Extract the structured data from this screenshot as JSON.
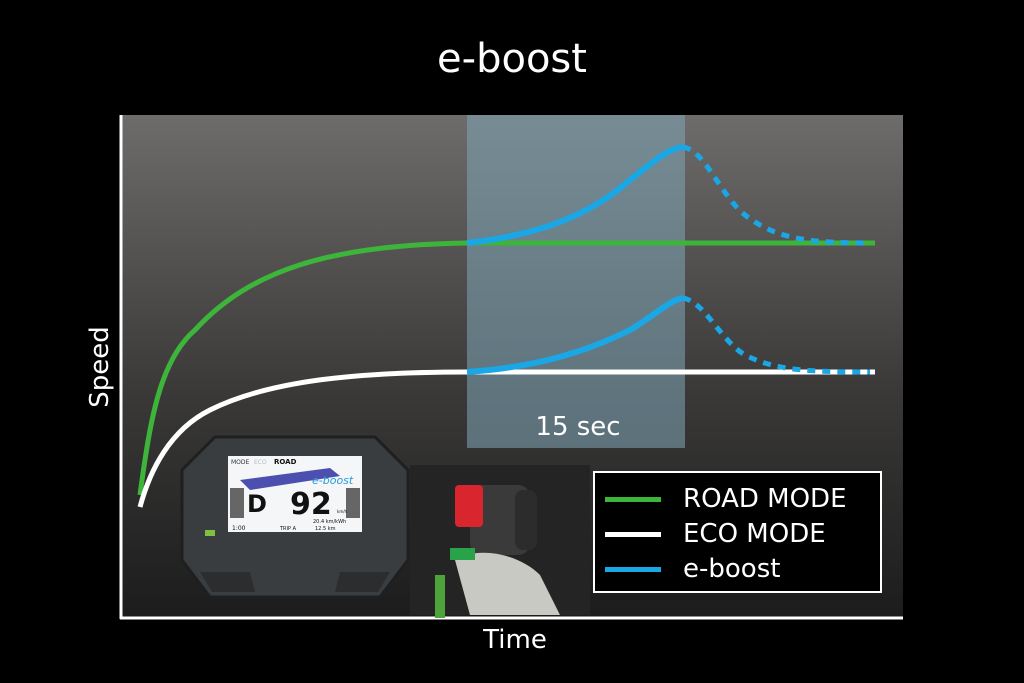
{
  "title": "e-boost",
  "chart_data": {
    "type": "line",
    "title": "e-boost",
    "xlabel": "Time",
    "ylabel": "Speed",
    "annotation": "15 sec",
    "legend_placement": "bottom-right",
    "grid": false,
    "series": [
      {
        "name": "ROAD MODE",
        "color": "#3db53a"
      },
      {
        "name": "ECO MODE",
        "color": "#ffffff"
      },
      {
        "name": "e-boost",
        "color": "#1aa7e6"
      }
    ]
  },
  "dashboard": {
    "mode_badge": "MODE",
    "mode_eco": "ECO",
    "mode_road": "ROAD",
    "boost_label": "e-boost",
    "gear": "D",
    "speed": "92",
    "speed_unit": "km/h",
    "clock": "1:00",
    "trip": "TRIP A",
    "consumption": "20.4 km/kWh",
    "distance": "12.5 km"
  }
}
